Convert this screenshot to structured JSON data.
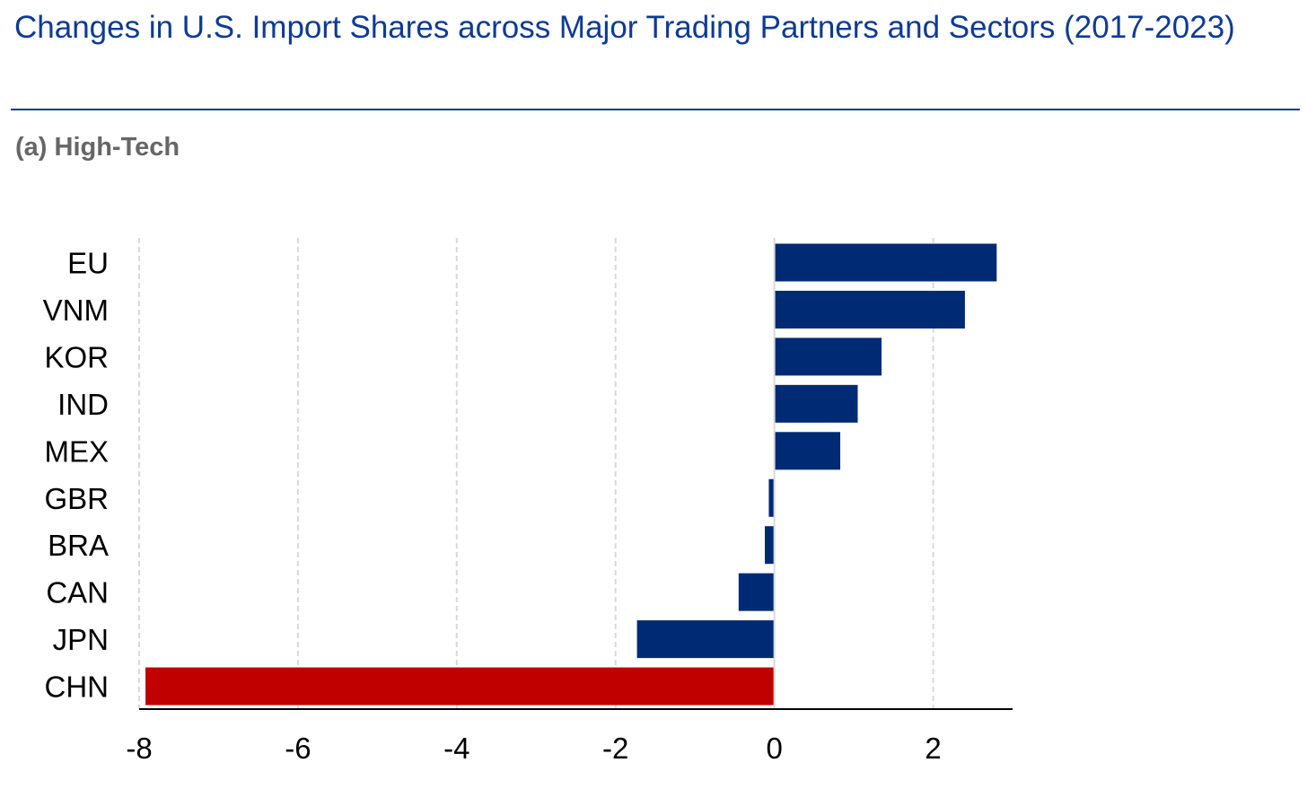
{
  "header": {
    "title": "Changes in U.S. Import Shares across Major Trading Partners and Sectors (2017-2023)",
    "subtitle": "(a) High-Tech"
  },
  "colors": {
    "title": "#0e3a96",
    "bar_default": "#002a73",
    "bar_highlight": "#c00000",
    "grid": "#d9d9d9",
    "subtitle": "#666666"
  },
  "chart_data": {
    "type": "bar",
    "orientation": "horizontal",
    "title": "(a) High-Tech",
    "categories": [
      "EU",
      "VNM",
      "KOR",
      "IND",
      "MEX",
      "GBR",
      "BRA",
      "CAN",
      "JPN",
      "CHN"
    ],
    "values": [
      2.8,
      2.4,
      1.35,
      1.05,
      0.83,
      -0.07,
      -0.12,
      -0.45,
      -1.73,
      -7.92
    ],
    "highlight": [
      "CHN"
    ],
    "xlim": [
      -8,
      3
    ],
    "xticks": [
      -8,
      -6,
      -4,
      -2,
      0,
      2
    ],
    "xlabel": "",
    "ylabel": "",
    "grid": "vertical dashed",
    "legend": "none"
  }
}
